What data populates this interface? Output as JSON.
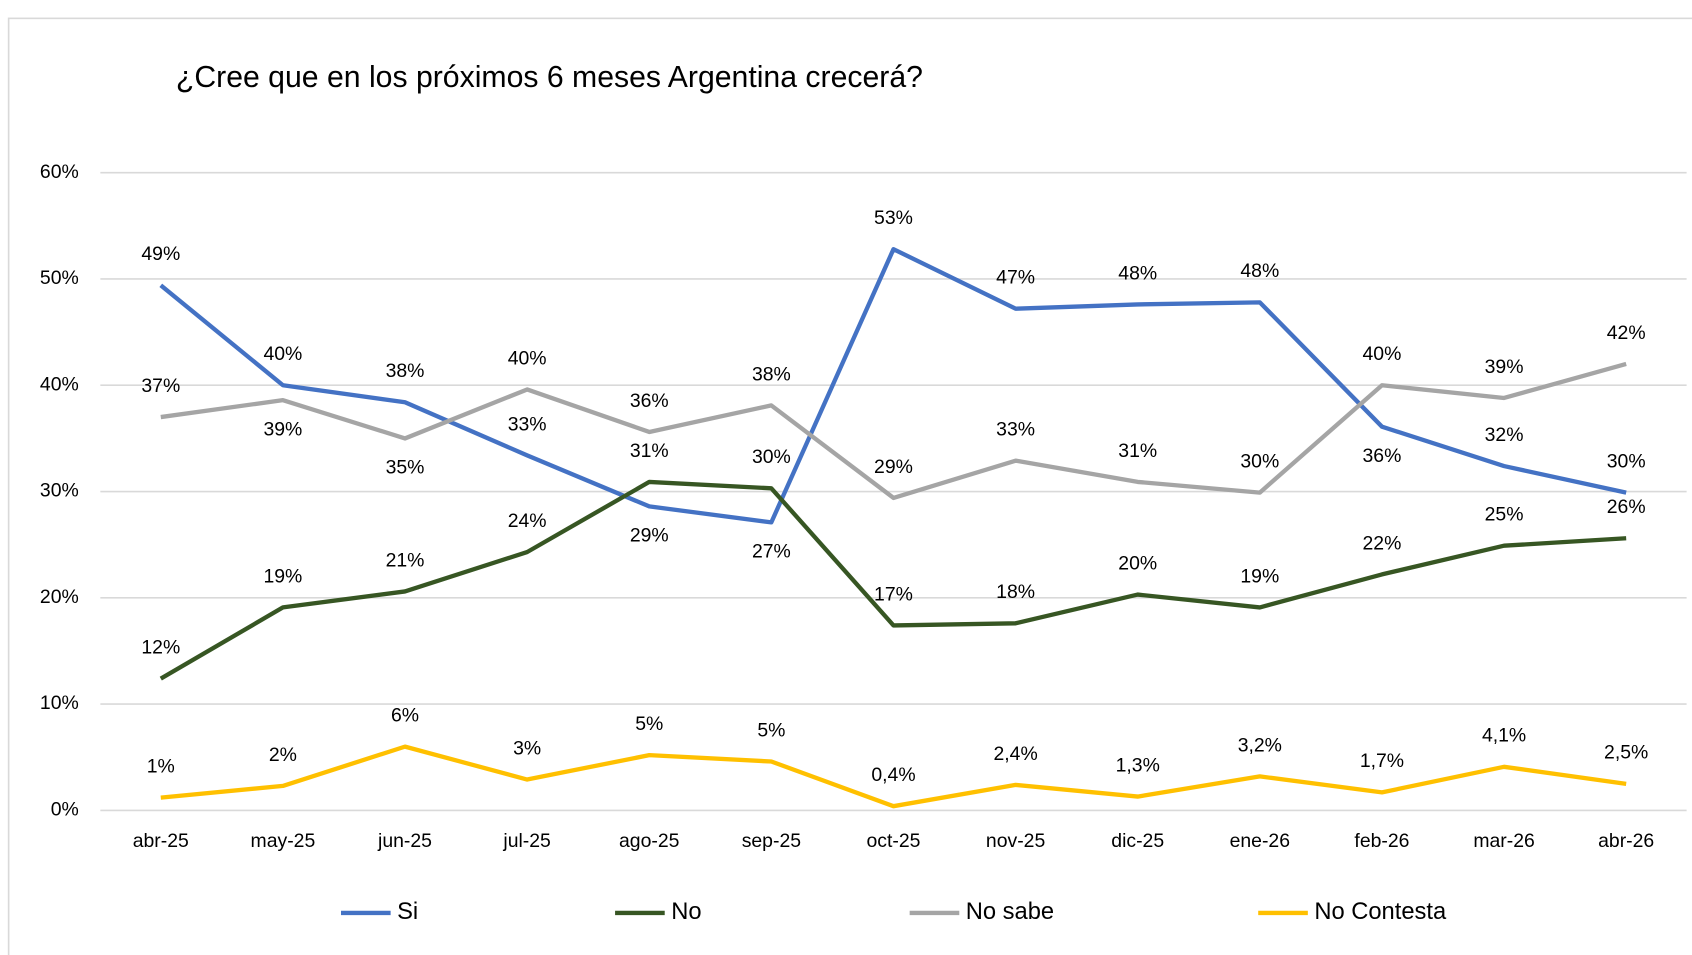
{
  "chart_data": {
    "type": "line",
    "title": "¿Cree que en los próximos 6 meses Argentina crecerá?",
    "categories": [
      "abr-25",
      "may-25",
      "jun-25",
      "jul-25",
      "ago-25",
      "sep-25",
      "oct-25",
      "nov-25",
      "dic-25",
      "ene-26",
      "feb-26",
      "mar-26",
      "abr-26"
    ],
    "ylim": [
      0,
      60
    ],
    "yticks": [
      {
        "value": 0,
        "label": "0%"
      },
      {
        "value": 10,
        "label": "10%"
      },
      {
        "value": 20,
        "label": "20%"
      },
      {
        "value": 30,
        "label": "30%"
      },
      {
        "value": 40,
        "label": "40%"
      },
      {
        "value": 50,
        "label": "50%"
      },
      {
        "value": 60,
        "label": "60%"
      }
    ],
    "grid": true,
    "legend": "bottom",
    "series": [
      {
        "name": "Si",
        "color": "#4472c4",
        "values": [
          49.4,
          40.0,
          38.4,
          33.4,
          28.6,
          27.1,
          52.8,
          47.2,
          47.6,
          47.8,
          36.1,
          32.4,
          29.9
        ],
        "value_labels": [
          "49%",
          "40%",
          "38%",
          "33%",
          "29%",
          "27%",
          "53%",
          "47%",
          "48%",
          "48%",
          "36%",
          "32%",
          "30%"
        ]
      },
      {
        "name": "No",
        "color": "#375623",
        "values": [
          12.4,
          19.1,
          20.6,
          24.3,
          30.9,
          30.3,
          17.4,
          17.6,
          20.3,
          19.1,
          22.2,
          24.9,
          25.6
        ],
        "value_labels": [
          "12%",
          "19%",
          "21%",
          "24%",
          "31%",
          "30%",
          "17%",
          "18%",
          "20%",
          "19%",
          "22%",
          "25%",
          "26%"
        ]
      },
      {
        "name": "No sabe",
        "color": "#a5a5a5",
        "values": [
          37.0,
          38.6,
          35.0,
          39.6,
          35.6,
          38.1,
          29.4,
          32.9,
          30.9,
          29.9,
          40.0,
          38.8,
          42.0
        ],
        "value_labels": [
          "37%",
          "39%",
          "35%",
          "40%",
          "36%",
          "38%",
          "29%",
          "33%",
          "31%",
          "30%",
          "40%",
          "39%",
          "42%"
        ]
      },
      {
        "name": "No Contesta",
        "color": "#ffc000",
        "values": [
          1.2,
          2.3,
          6.0,
          2.9,
          5.2,
          4.6,
          0.4,
          2.4,
          1.3,
          3.2,
          1.7,
          4.1,
          2.5
        ],
        "value_labels": [
          "1%",
          "2%",
          "6%",
          "3%",
          "5%",
          "5%",
          "0,4%",
          "2,4%",
          "1,3%",
          "3,2%",
          "1,7%",
          "4,1%",
          "2,5%"
        ]
      }
    ]
  }
}
